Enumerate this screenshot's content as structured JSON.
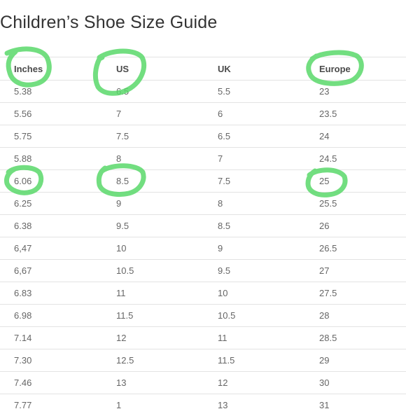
{
  "title": "Children’s Shoe Size Guide",
  "table": {
    "headers": [
      "Inches",
      "US",
      "UK",
      "Europe"
    ],
    "rows": [
      [
        "5.38",
        "6.5",
        "5.5",
        "23"
      ],
      [
        "5.56",
        "7",
        "6",
        "23.5"
      ],
      [
        "5.75",
        "7.5",
        "6.5",
        "24"
      ],
      [
        "5.88",
        "8",
        "7",
        "24.5"
      ],
      [
        "6.06",
        "8.5",
        "7.5",
        "25"
      ],
      [
        "6.25",
        "9",
        "8",
        "25.5"
      ],
      [
        "6.38",
        "9.5",
        "8.5",
        "26"
      ],
      [
        "6,47",
        "10",
        "9",
        "26.5"
      ],
      [
        "6,67",
        "10.5",
        "9.5",
        "27"
      ],
      [
        "6.83",
        "11",
        "10",
        "27.5"
      ],
      [
        "6.98",
        "11.5",
        "10.5",
        "28"
      ],
      [
        "7.14",
        "12",
        "11",
        "28.5"
      ],
      [
        "7.30",
        "12.5",
        "11.5",
        "29"
      ],
      [
        "7.46",
        "13",
        "12",
        "30"
      ],
      [
        "7.77",
        "1",
        "13",
        "31"
      ]
    ]
  },
  "highlight_color": "#59d86a"
}
